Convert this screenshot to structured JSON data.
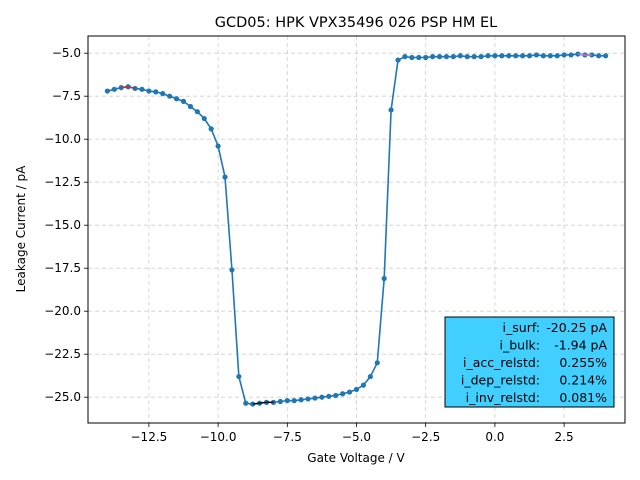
{
  "chart_data": {
    "type": "line",
    "title": "GCD05: HPK VPX35496 026 PSP HM EL",
    "xlabel": "Gate Voltage / V",
    "ylabel": "Leakage Current / pA",
    "xlim": [
      -14.7,
      4.7
    ],
    "ylim": [
      -26.5,
      -4.0
    ],
    "xticks": [
      -12.5,
      -10.0,
      -7.5,
      -5.0,
      -2.5,
      0.0,
      2.5
    ],
    "yticks": [
      -25.0,
      -22.5,
      -20.0,
      -17.5,
      -15.0,
      -12.5,
      -10.0,
      -7.5,
      -5.0
    ],
    "xtick_labels": [
      "−12.5",
      "−10.0",
      "−7.5",
      "−5.0",
      "−2.5",
      "0.0",
      "2.5"
    ],
    "ytick_labels": [
      "−25.0",
      "−22.5",
      "−20.0",
      "−17.5",
      "−15.0",
      "−12.5",
      "−10.0",
      "−7.5",
      "−5.0"
    ],
    "grid": true,
    "line_color": "#1f77b4",
    "series": [
      {
        "x": [
          -14.0,
          -13.75,
          -13.5,
          -13.25,
          -13.0,
          -12.75,
          -12.5,
          -12.25,
          -12.0,
          -11.75,
          -11.5,
          -11.25,
          -11.0,
          -10.75,
          -10.5,
          -10.25,
          -10.0,
          -9.75,
          -9.5,
          -9.25,
          -9.0,
          -8.75,
          -8.5,
          -8.25,
          -8.0,
          -7.75,
          -7.5,
          -7.25,
          -7.0,
          -6.75,
          -6.5,
          -6.25,
          -6.0,
          -5.75,
          -5.5,
          -5.25,
          -5.0,
          -4.75,
          -4.5,
          -4.25,
          -4.0,
          -3.75,
          -3.5,
          -3.25,
          -3.0,
          -2.75,
          -2.5,
          -2.25,
          -2.0,
          -1.75,
          -1.5,
          -1.25,
          -1.0,
          -0.75,
          -0.5,
          -0.25,
          0.0,
          0.25,
          0.5,
          0.75,
          1.0,
          1.25,
          1.5,
          1.75,
          2.0,
          2.25,
          2.5,
          2.75,
          3.0,
          3.25,
          3.5,
          3.75,
          4.0
        ],
        "y": [
          -7.2,
          -7.1,
          -7.0,
          -6.95,
          -7.05,
          -7.1,
          -7.2,
          -7.25,
          -7.35,
          -7.5,
          -7.65,
          -7.8,
          -8.1,
          -8.4,
          -8.8,
          -9.4,
          -10.4,
          -12.2,
          -17.6,
          -23.8,
          -25.35,
          -25.4,
          -25.35,
          -25.3,
          -25.3,
          -25.25,
          -25.2,
          -25.2,
          -25.15,
          -25.1,
          -25.05,
          -25.0,
          -24.95,
          -24.9,
          -24.8,
          -24.7,
          -24.55,
          -24.3,
          -23.8,
          -23.0,
          -18.1,
          -8.3,
          -5.4,
          -5.2,
          -5.25,
          -5.25,
          -5.25,
          -5.2,
          -5.2,
          -5.2,
          -5.2,
          -5.15,
          -5.2,
          -5.2,
          -5.2,
          -5.15,
          -5.15,
          -5.15,
          -5.15,
          -5.15,
          -5.15,
          -5.15,
          -5.1,
          -5.15,
          -5.15,
          -5.15,
          -5.1,
          -5.1,
          -5.05,
          -5.1,
          -5.1,
          -5.15,
          -5.15
        ]
      }
    ],
    "highlight_segments": [
      {
        "color": "#d62728",
        "x": [
          -13.5,
          -13.25,
          -13.0
        ]
      },
      {
        "color": "#000000",
        "x": [
          -8.75,
          -8.5,
          -8.25,
          -8.0
        ]
      },
      {
        "color": "#e377c2",
        "x": [
          3.0,
          3.25,
          3.5
        ]
      }
    ],
    "stats_box": {
      "background": "#40cfff",
      "rows": [
        {
          "label": "i_surf:",
          "value": "-20.25 pA"
        },
        {
          "label": "i_bulk:",
          "value": "-1.94 pA"
        },
        {
          "label": "i_acc_relstd:",
          "value": "0.255%"
        },
        {
          "label": "i_dep_relstd:",
          "value": "0.214%"
        },
        {
          "label": "i_inv_relstd:",
          "value": "0.081%"
        }
      ]
    }
  }
}
